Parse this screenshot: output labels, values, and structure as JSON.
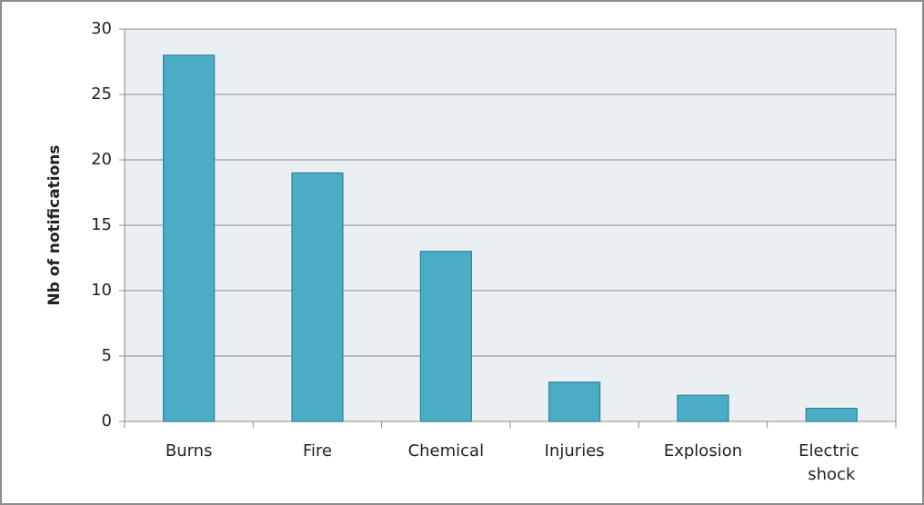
{
  "chart_data": {
    "type": "bar",
    "y_label": "Nb of notifications",
    "categories": [
      "Burns",
      "Fire",
      "Chemical",
      "Injuries",
      "Explosion",
      "Electric shock"
    ],
    "values": [
      28,
      19,
      13,
      3,
      2,
      1
    ],
    "color": "#4bacc6",
    "ylim": [
      0,
      30
    ],
    "yticks": [
      0,
      5,
      10,
      15,
      20,
      25,
      30
    ],
    "grid": true
  }
}
